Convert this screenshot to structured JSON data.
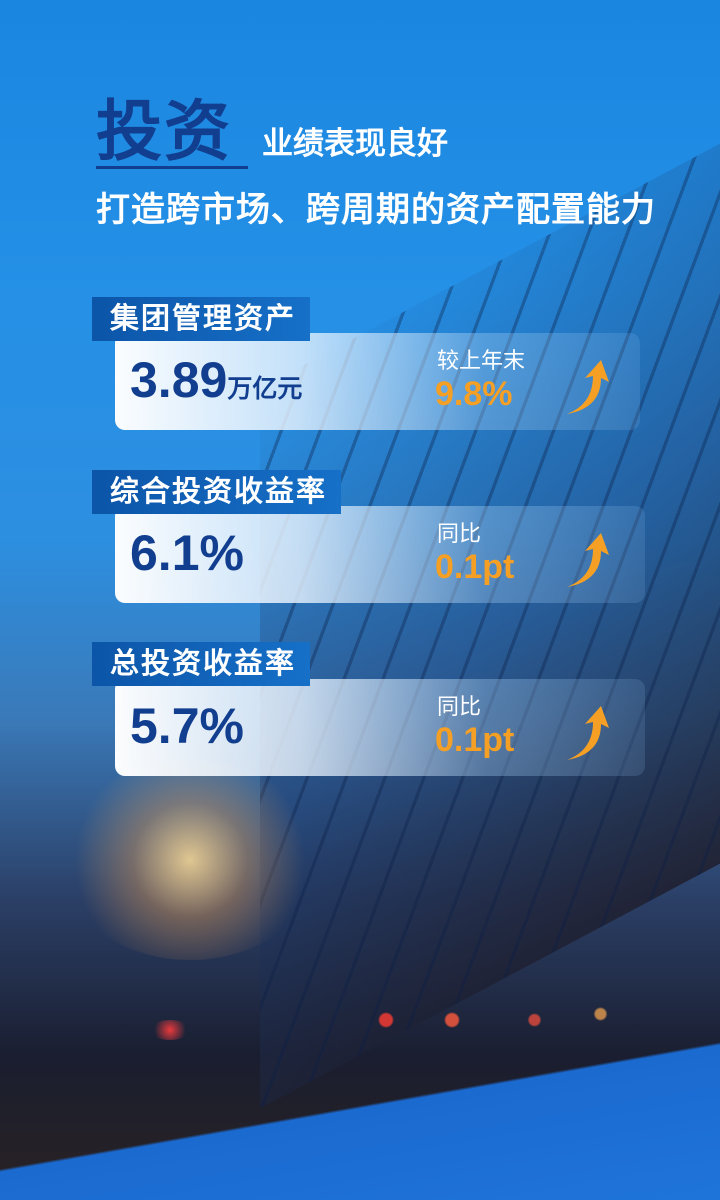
{
  "header": {
    "title": "投资",
    "title_suffix": "业绩表现良好",
    "subtitle": "打造跨市场、跨周期的资产配置能力"
  },
  "colors": {
    "navy": "#123e8f",
    "orange": "#f5a024",
    "tab_blue": "#0c55a8"
  },
  "metrics": [
    {
      "label": "集团管理资产",
      "value": "3.89",
      "unit": "万亿元",
      "compare_label": "较上年末",
      "compare_value": "9.8%",
      "trend_icon": "arrow-up-icon"
    },
    {
      "label": "综合投资收益率",
      "value": "6.1%",
      "unit": "",
      "compare_label": "同比",
      "compare_value": "0.1pt",
      "trend_icon": "arrow-up-icon"
    },
    {
      "label": "总投资收益率",
      "value": "5.7%",
      "unit": "",
      "compare_label": "同比",
      "compare_value": "0.1pt",
      "trend_icon": "arrow-up-icon"
    }
  ]
}
